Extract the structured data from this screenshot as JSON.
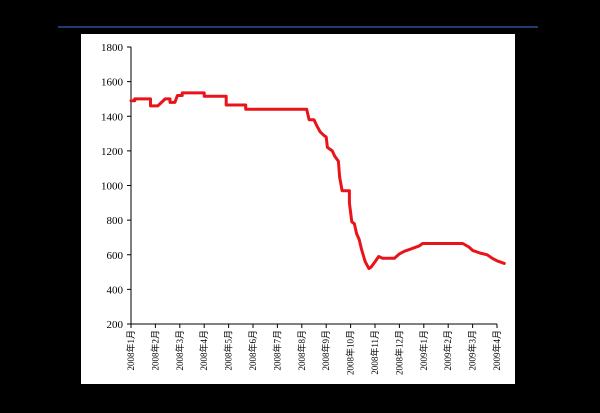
{
  "chart_data": {
    "type": "line",
    "title": "",
    "xlabel": "",
    "ylabel": "",
    "ylim": [
      200,
      1800
    ],
    "yticks": [
      200,
      400,
      600,
      800,
      1000,
      1200,
      1400,
      1600,
      1800
    ],
    "grid": false,
    "legend": "none",
    "categories": [
      "2008年1月",
      "2008年2月",
      "2008年3月",
      "2008年4月",
      "2008年5月",
      "2008年6月",
      "2008年7月",
      "2008年8月",
      "2008年9月",
      "2008年10月",
      "2008年11月",
      "2008年12月",
      "2009年1月",
      "2009年2月",
      "2009年3月",
      "2009年4月"
    ],
    "series": [
      {
        "color": "#e8141a",
        "points": [
          [
            0.0,
            1490
          ],
          [
            0.15,
            1490
          ],
          [
            0.15,
            1500
          ],
          [
            0.8,
            1500
          ],
          [
            0.8,
            1460
          ],
          [
            1.1,
            1460
          ],
          [
            1.4,
            1500
          ],
          [
            1.6,
            1500
          ],
          [
            1.6,
            1480
          ],
          [
            1.8,
            1480
          ],
          [
            1.9,
            1520
          ],
          [
            2.1,
            1520
          ],
          [
            2.1,
            1535
          ],
          [
            3.0,
            1535
          ],
          [
            3.0,
            1515
          ],
          [
            3.9,
            1515
          ],
          [
            3.9,
            1465
          ],
          [
            4.7,
            1465
          ],
          [
            4.7,
            1440
          ],
          [
            7.2,
            1440
          ],
          [
            7.3,
            1380
          ],
          [
            7.5,
            1380
          ],
          [
            7.6,
            1350
          ],
          [
            7.75,
            1310
          ],
          [
            7.9,
            1290
          ],
          [
            8.0,
            1280
          ],
          [
            8.05,
            1220
          ],
          [
            8.25,
            1200
          ],
          [
            8.35,
            1170
          ],
          [
            8.5,
            1140
          ],
          [
            8.55,
            1050
          ],
          [
            8.65,
            970
          ],
          [
            8.95,
            970
          ],
          [
            8.95,
            900
          ],
          [
            9.05,
            790
          ],
          [
            9.15,
            780
          ],
          [
            9.25,
            720
          ],
          [
            9.35,
            690
          ],
          [
            9.45,
            630
          ],
          [
            9.6,
            560
          ],
          [
            9.75,
            520
          ],
          [
            9.85,
            530
          ],
          [
            10.0,
            560
          ],
          [
            10.15,
            590
          ],
          [
            10.3,
            580
          ],
          [
            10.8,
            580
          ],
          [
            11.0,
            605
          ],
          [
            11.2,
            620
          ],
          [
            11.4,
            630
          ],
          [
            11.6,
            640
          ],
          [
            11.8,
            650
          ],
          [
            11.95,
            665
          ],
          [
            12.9,
            665
          ],
          [
            13.6,
            665
          ],
          [
            13.85,
            645
          ],
          [
            14.0,
            625
          ],
          [
            14.3,
            610
          ],
          [
            14.6,
            600
          ],
          [
            14.8,
            580
          ],
          [
            15.0,
            565
          ],
          [
            15.3,
            550
          ]
        ]
      }
    ]
  }
}
